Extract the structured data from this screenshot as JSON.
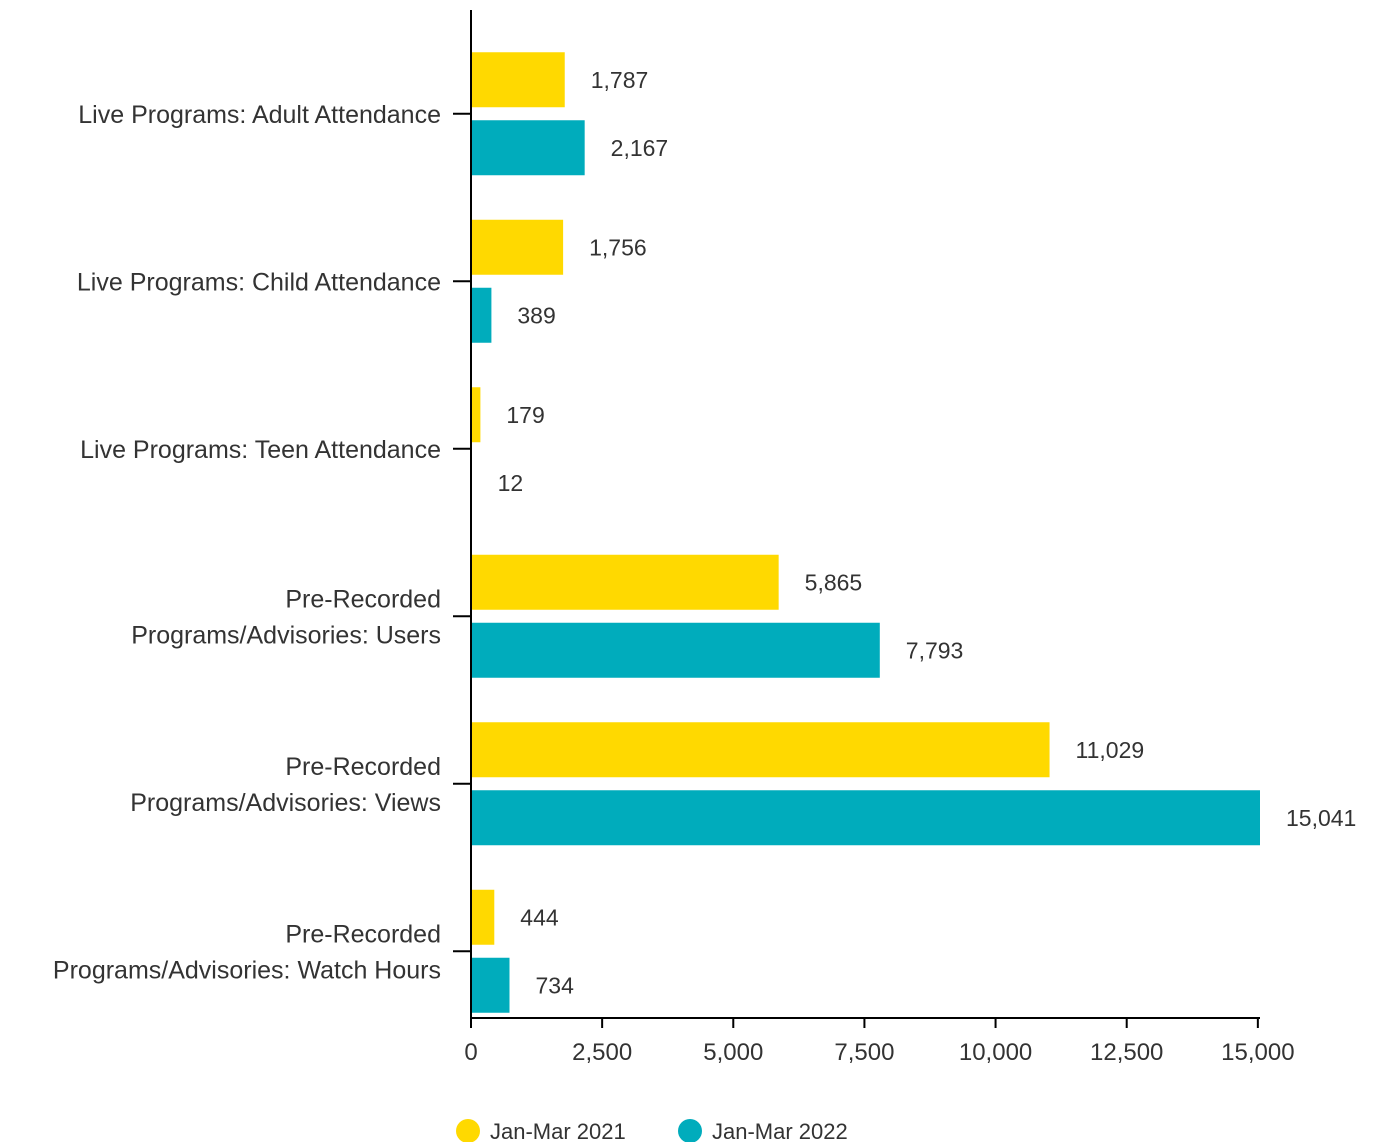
{
  "chart_data": {
    "type": "bar",
    "orientation": "horizontal",
    "categories": [
      [
        "Live Programs: Adult Attendance"
      ],
      [
        "Live Programs: Child Attendance"
      ],
      [
        "Live Programs: Teen Attendance"
      ],
      [
        "Pre-Recorded",
        "Programs/Advisories: Users"
      ],
      [
        "Pre-Recorded",
        "Programs/Advisories: Views"
      ],
      [
        "Pre-Recorded",
        "Programs/Advisories: Watch Hours"
      ]
    ],
    "series": [
      {
        "name": "Jan-Mar 2021",
        "color": "#FFD900",
        "values": [
          1787,
          1756,
          179,
          5865,
          11029,
          444
        ],
        "labels": [
          "1,787",
          "1,756",
          "179",
          "5,865",
          "11,029",
          "444"
        ]
      },
      {
        "name": "Jan-Mar 2022",
        "color": "#00ACBC",
        "values": [
          2167,
          389,
          12,
          7793,
          15041,
          734
        ],
        "labels": [
          "2,167",
          "389",
          "12",
          "7,793",
          "15,041",
          "734"
        ]
      }
    ],
    "xlim": [
      0,
      15041
    ],
    "xticks": [
      0,
      2500,
      5000,
      7500,
      10000,
      12500,
      15000
    ],
    "xtick_labels": [
      "0",
      "2,500",
      "5,000",
      "7,500",
      "10,000",
      "12,500",
      "15,000"
    ],
    "title": "",
    "xlabel": "",
    "ylabel": "",
    "grid": false,
    "legend_position": "bottom-center"
  }
}
